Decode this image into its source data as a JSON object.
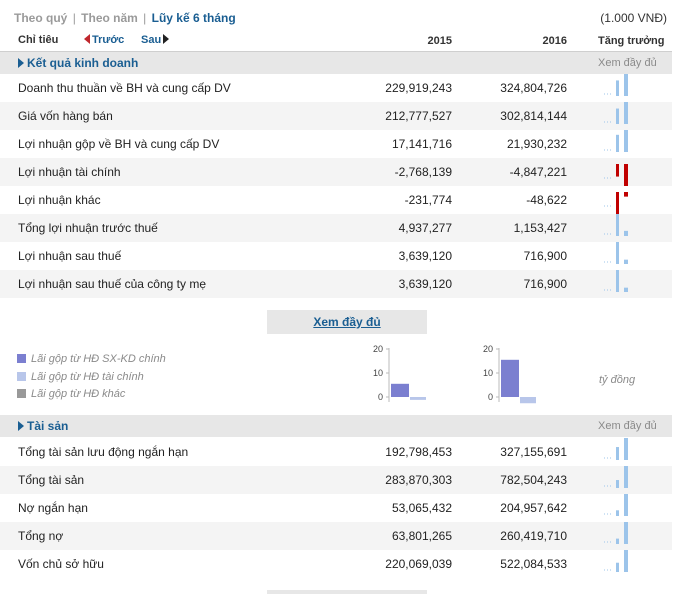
{
  "tabs": {
    "quarter": "Theo quý",
    "year": "Theo năm",
    "cumulative": "Lũy kế 6 tháng",
    "sep": "|"
  },
  "unit": "(1.000 VNĐ)",
  "header": {
    "indicator": "Chỉ tiêu",
    "prev": "Trước",
    "next": "Sau",
    "year1": "2015",
    "year2": "2016",
    "growth": "Tăng trưởng"
  },
  "section_income": {
    "title": "Kết quả kinh doanh",
    "more": "Xem đầy đủ"
  },
  "income_rows": [
    {
      "label": "Doanh thu thuần về BH và cung cấp DV",
      "v1": "229,919,243",
      "v2": "324,804,726",
      "n1": 229919243,
      "n2": 324804726
    },
    {
      "label": "Giá vốn hàng bán",
      "v1": "212,777,527",
      "v2": "302,814,144",
      "n1": 212777527,
      "n2": 302814144
    },
    {
      "label": "Lợi nhuận gộp về BH và cung cấp DV",
      "v1": "17,141,716",
      "v2": "21,930,232",
      "n1": 17141716,
      "n2": 21930232
    },
    {
      "label": "Lợi nhuận tài chính",
      "v1": "-2,768,139",
      "v2": "-4,847,221",
      "n1": -2768139,
      "n2": -4847221
    },
    {
      "label": "Lợi nhuận khác",
      "v1": "-231,774",
      "v2": "-48,622",
      "n1": -231774,
      "n2": -48622
    },
    {
      "label": "Tổng lợi nhuận trước thuế",
      "v1": "4,937,277",
      "v2": "1,153,427",
      "n1": 4937277,
      "n2": 1153427
    },
    {
      "label": "Lợi nhuận sau thuế",
      "v1": "3,639,120",
      "v2": "716,900",
      "n1": 3639120,
      "n2": 716900
    },
    {
      "label": "Lợi nhuận sau thuế của công ty mẹ",
      "v1": "3,639,120",
      "v2": "716,900",
      "n1": 3639120,
      "n2": 716900
    }
  ],
  "show_more_button": "Xem đầy đủ",
  "legend": [
    {
      "label": "Lãi gộp từ HĐ SX-KD chính",
      "color": "#7b7fd0"
    },
    {
      "label": "Lãi gộp từ HĐ tài chính",
      "color": "#b8c6ea"
    },
    {
      "label": "Lãi gộp từ HĐ khác",
      "color": "#999999"
    }
  ],
  "chart_unit": "tỷ đồng",
  "colors": {
    "accent": "#1a5e92",
    "spark_pos": "#9cc4ea",
    "spark_neg": "#c00000"
  },
  "chart_data": [
    {
      "type": "bar",
      "categories": [
        "Lãi gộp từ HĐ SX-KD chính",
        "Lãi gộp từ HĐ tài chính"
      ],
      "values": [
        5.5,
        -1.2
      ],
      "yticks": [
        "0",
        "10",
        "20"
      ],
      "ylim": [
        0,
        20
      ]
    },
    {
      "type": "bar",
      "categories": [
        "Lãi gộp từ HĐ SX-KD chính",
        "Lãi gộp từ HĐ tài chính"
      ],
      "values": [
        15.5,
        -2.6
      ],
      "yticks": [
        "0",
        "10",
        "20"
      ],
      "ylim": [
        0,
        20
      ]
    }
  ],
  "section_assets": {
    "title": "Tài sản",
    "more": "Xem đầy đủ"
  },
  "asset_rows": [
    {
      "label": "Tổng tài sản lưu động ngắn hạn",
      "v1": "192,798,453",
      "v2": "327,155,691",
      "n1": 192798453,
      "n2": 327155691
    },
    {
      "label": "Tổng tài sản",
      "v1": "283,870,303",
      "v2": "782,504,243",
      "n1": 283870303,
      "n2": 782504243
    },
    {
      "label": "Nợ ngắn hạn",
      "v1": "53,065,432",
      "v2": "204,957,642",
      "n1": 53065432,
      "n2": 204957642
    },
    {
      "label": "Tổng nợ",
      "v1": "63,801,265",
      "v2": "260,419,710",
      "n1": 63801265,
      "n2": 260419710
    },
    {
      "label": "Vốn chủ sở hữu",
      "v1": "220,069,039",
      "v2": "522,084,533",
      "n1": 220069039,
      "n2": 522084533
    }
  ]
}
